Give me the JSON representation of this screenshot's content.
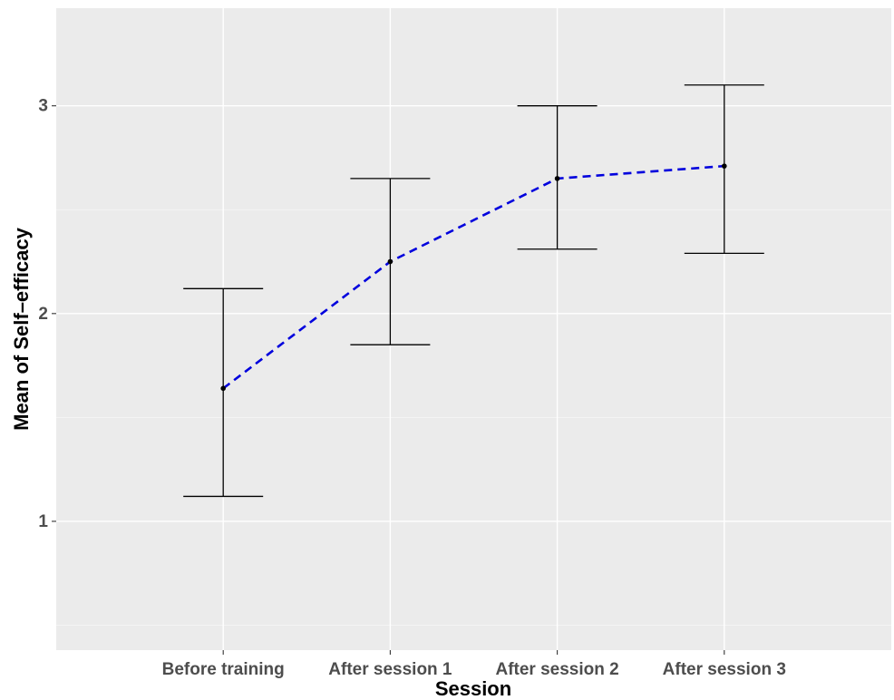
{
  "chart_data": {
    "type": "line",
    "title": "",
    "xlabel": "Session",
    "ylabel": "Mean of Self–efficacy",
    "categories": [
      "Before training",
      "After session 1",
      "After session 2",
      "After session 3"
    ],
    "series": [
      {
        "values": [
          1.64,
          2.25,
          2.65,
          2.71
        ],
        "error_lower": [
          1.12,
          1.85,
          2.31,
          2.29
        ],
        "error_upper": [
          2.12,
          2.65,
          3.0,
          3.1
        ],
        "line_style": "dashed",
        "line_color": "#0000dd",
        "point_color": "#000000",
        "errorbar_color": "#000000"
      }
    ],
    "ylim": [
      0.38,
      3.47
    ],
    "yticks": [
      1,
      2,
      3
    ],
    "grid": true,
    "legend": "none",
    "colors": {
      "panel_background": "#ebebeb",
      "grid_major": "#ffffff",
      "tick_label": "#4d4d4d"
    }
  }
}
